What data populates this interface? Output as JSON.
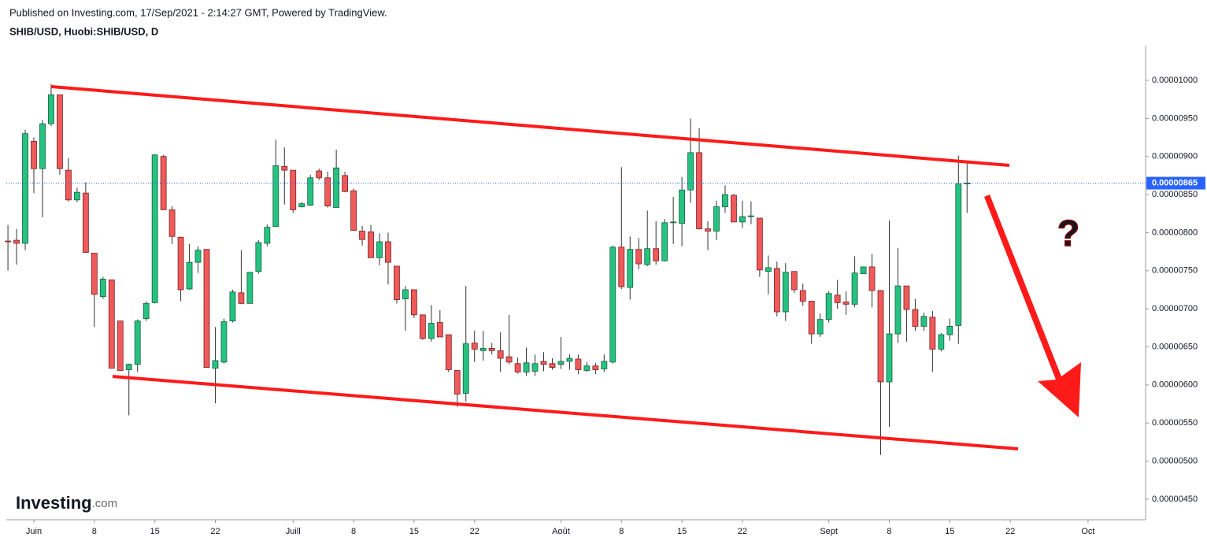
{
  "header": {
    "published": "Published on Investing.com, 17/Sep/2021 - 2:14:27 GMT, Powered by TradingView.",
    "symbol": "SHIB/USD, Huobi:SHIB/USD, D"
  },
  "logo": {
    "name": "Investing",
    "suffix": ".com"
  },
  "chart_data": {
    "type": "candlestick",
    "up_color": "#26c281",
    "down_color": "#ef5a5a",
    "annotation": "?",
    "price_line": {
      "value": 8.65e-06,
      "label": "0.00000865"
    },
    "xlim": [
      -3.19,
      128.66
    ],
    "xticks": [
      {
        "value": 0,
        "label": "Juin"
      },
      {
        "value": 7,
        "label": "8"
      },
      {
        "value": 14,
        "label": "15"
      },
      {
        "value": 21,
        "label": "22"
      },
      {
        "value": 30,
        "label": "Juill"
      },
      {
        "value": 37,
        "label": "8"
      },
      {
        "value": 44,
        "label": "15"
      },
      {
        "value": 51,
        "label": "22"
      },
      {
        "value": 61,
        "label": "Août"
      },
      {
        "value": 68,
        "label": "8"
      },
      {
        "value": 75,
        "label": "15"
      },
      {
        "value": 82,
        "label": "22"
      },
      {
        "value": 92,
        "label": "Sept"
      },
      {
        "value": 99,
        "label": "8"
      },
      {
        "value": 106,
        "label": "15"
      },
      {
        "value": 113,
        "label": "22"
      },
      {
        "value": 122,
        "label": "Oct"
      }
    ],
    "ylim": [
      4.23e-06,
      1.0455e-05
    ],
    "yticks": [
      {
        "value": 4.5e-06,
        "label": "0.00000450"
      },
      {
        "value": 5e-06,
        "label": "0.00000500"
      },
      {
        "value": 5.5e-06,
        "label": "0.00000550"
      },
      {
        "value": 6e-06,
        "label": "0.00000600"
      },
      {
        "value": 6.5e-06,
        "label": "0.00000650"
      },
      {
        "value": 7e-06,
        "label": "0.00000700"
      },
      {
        "value": 7.5e-06,
        "label": "0.00000750"
      },
      {
        "value": 8e-06,
        "label": "0.00000800"
      },
      {
        "value": 8.5e-06,
        "label": "0.00000850"
      },
      {
        "value": 9e-06,
        "label": "0.00000900"
      },
      {
        "value": 9.5e-06,
        "label": "0.00000950"
      },
      {
        "value": 1e-05,
        "label": "0.00001000"
      }
    ],
    "x": [
      -3,
      -2,
      -1,
      0,
      1,
      2,
      3,
      4,
      5,
      6,
      7,
      8,
      9,
      10,
      11,
      12,
      13,
      14,
      15,
      16,
      17,
      18,
      19,
      20,
      21,
      22,
      23,
      24,
      25,
      26,
      27,
      28,
      29,
      30,
      31,
      32,
      33,
      34,
      35,
      36,
      37,
      38,
      39,
      40,
      41,
      42,
      43,
      44,
      45,
      46,
      47,
      48,
      49,
      50,
      51,
      52,
      53,
      54,
      55,
      56,
      57,
      58,
      59,
      60,
      61,
      62,
      63,
      64,
      65,
      66,
      67,
      68,
      69,
      70,
      71,
      72,
      73,
      74,
      75,
      76,
      77,
      78,
      79,
      80,
      81,
      82,
      83,
      84,
      85,
      86,
      87,
      88,
      89,
      90,
      91,
      92,
      93,
      94,
      95,
      96,
      97,
      98,
      99,
      100,
      101,
      102,
      103,
      104,
      105,
      106,
      107,
      108
    ],
    "open": [
      7.89e-06,
      7.9e-06,
      7.86e-06,
      9.2e-06,
      8.84e-06,
      9.43e-06,
      9.81e-06,
      8.82e-06,
      8.43e-06,
      8.52e-06,
      7.73e-06,
      7.16e-06,
      7.38e-06,
      6.84e-06,
      6.2e-06,
      6.27e-06,
      6.87e-06,
      7.08e-06,
      9e-06,
      8.3e-06,
      7.94e-06,
      7.26e-06,
      7.61e-06,
      7.78e-06,
      6.22e-06,
      6.3e-06,
      6.84e-06,
      7.21e-06,
      7.07e-06,
      7.49e-06,
      7.86e-06,
      8.08e-06,
      8.87e-06,
      8.82e-06,
      8.34e-06,
      8.36e-06,
      8.81e-06,
      8.72e-06,
      8.33e-06,
      8.75e-06,
      8.55e-06,
      8.02e-06,
      8.01e-06,
      7.67e-06,
      7.88e-06,
      7.56e-06,
      7.13e-06,
      7.25e-06,
      6.92e-06,
      6.61e-06,
      6.82e-06,
      6.66e-06,
      6.19e-06,
      5.89e-06,
      6.55e-06,
      6.45e-06,
      6.48e-06,
      6.45e-06,
      6.37e-06,
      6.28e-06,
      6.17e-06,
      6.18e-06,
      6.31e-06,
      6.28e-06,
      6.27e-06,
      6.31e-06,
      6.34e-06,
      6.19e-06,
      6.25e-06,
      6.21e-06,
      6.3e-06,
      7.81e-06,
      7.28e-06,
      7.78e-06,
      7.58e-06,
      7.79e-06,
      7.63e-06,
      8.13e-06,
      8.12e-06,
      8.56e-06,
      9.05e-06,
      8.05e-06,
      8.02e-06,
      8.34e-06,
      8.49e-06,
      8.14e-06,
      8.21e-06,
      8.19e-06,
      7.49e-06,
      7.53e-06,
      6.96e-06,
      7.49e-06,
      7.24e-06,
      7.1e-06,
      6.67e-06,
      6.86e-06,
      7.18e-06,
      7.09e-06,
      7.06e-06,
      7.46e-06,
      7.55e-06,
      7.24e-06,
      6.04e-06,
      6.67e-06,
      7.3e-06,
      6.99e-06,
      6.77e-06,
      6.89e-06,
      6.47e-06,
      6.66e-06,
      6.78e-06,
      8.64e-06
    ],
    "high": [
      8.1e-06,
      8.05e-06,
      9.35e-06,
      9.25e-06,
      9.48e-06,
      9.95e-06,
      9.81e-06,
      8.98e-06,
      8.59e-06,
      8.66e-06,
      7.73e-06,
      7.42e-06,
      7.38e-06,
      6.84e-06,
      6.28e-06,
      6.86e-06,
      7.1e-06,
      9.03e-06,
      9.02e-06,
      8.35e-06,
      7.94e-06,
      7.85e-06,
      7.82e-06,
      7.78e-06,
      6.76e-06,
      6.87e-06,
      7.25e-06,
      7.77e-06,
      7.48e-06,
      7.9e-06,
      8.11e-06,
      9.22e-06,
      9.12e-06,
      8.82e-06,
      8.4e-06,
      8.76e-06,
      8.84e-06,
      8.8e-06,
      9.09e-06,
      8.8e-06,
      8.58e-06,
      8.09e-06,
      8.1e-06,
      7.99e-06,
      8e-06,
      7.56e-06,
      7.3e-06,
      7.25e-06,
      6.92e-06,
      7.05e-06,
      6.98e-06,
      6.66e-06,
      6.19e-06,
      7.3e-06,
      6.71e-06,
      6.71e-06,
      6.55e-06,
      6.69e-06,
      6.92e-06,
      6.36e-06,
      6.49e-06,
      6.4e-06,
      6.43e-06,
      6.35e-06,
      6.63e-06,
      6.4e-06,
      6.4e-06,
      6.3e-06,
      6.29e-06,
      6.4e-06,
      7.83e-06,
      8.86e-06,
      7.95e-06,
      7.93e-06,
      8.29e-06,
      8.15e-06,
      8.18e-06,
      8.47e-06,
      8.73e-06,
      9.5e-06,
      9.37e-06,
      8.15e-06,
      8.42e-06,
      8.62e-06,
      8.51e-06,
      8.42e-06,
      8.41e-06,
      8.19e-06,
      7.7e-06,
      7.62e-06,
      7.6e-06,
      7.49e-06,
      7.33e-06,
      7.1e-06,
      6.94e-06,
      7.23e-06,
      7.38e-06,
      7.23e-06,
      7.69e-06,
      7.55e-06,
      7.72e-06,
      7.24e-06,
      8.16e-06,
      7.8e-06,
      7.3e-06,
      7.13e-06,
      6.95e-06,
      6.97e-06,
      6.68e-06,
      6.87e-06,
      9.01e-06,
      8.91e-06
    ],
    "low": [
      7.5e-06,
      7.58e-06,
      7.77e-06,
      8.52e-06,
      8.2e-06,
      9.4e-06,
      8.76e-06,
      8.41e-06,
      8.4e-06,
      7.74e-06,
      6.76e-06,
      7.13e-06,
      6.22e-06,
      6.19e-06,
      5.6e-06,
      6.17e-06,
      6.84e-06,
      7.07e-06,
      8.3e-06,
      7.85e-06,
      7.1e-06,
      7.25e-06,
      7.47e-06,
      6.23e-06,
      5.76e-06,
      6.28e-06,
      6.82e-06,
      7.06e-06,
      7.07e-06,
      7.46e-06,
      7.82e-06,
      8.08e-06,
      8.37e-06,
      8.26e-06,
      8.33e-06,
      8.35e-06,
      8.69e-06,
      8.33e-06,
      8.33e-06,
      8.53e-06,
      8.03e-06,
      7.83e-06,
      7.67e-06,
      7.57e-06,
      7.32e-06,
      7.07e-06,
      6.71e-06,
      6.88e-06,
      6.59e-06,
      6.57e-06,
      6.63e-06,
      6.17e-06,
      5.71e-06,
      5.78e-06,
      6.3e-06,
      6.32e-06,
      6.4e-06,
      6.17e-06,
      6.27e-06,
      6.15e-06,
      6.12e-06,
      6.12e-06,
      6.18e-06,
      6.2e-06,
      6.21e-06,
      6.2e-06,
      6.14e-06,
      6.17e-06,
      6.14e-06,
      6.17e-06,
      6.28e-06,
      7.26e-06,
      7.12e-06,
      7.52e-06,
      7.56e-06,
      7.58e-06,
      7.62e-06,
      7.85e-06,
      7.82e-06,
      8.39e-06,
      8.04e-06,
      7.77e-06,
      7.9e-06,
      8.26e-06,
      8.14e-06,
      8.06e-06,
      8.11e-06,
      7.42e-06,
      7.19e-06,
      6.9e-06,
      6.84e-06,
      7.21e-06,
      7.04e-06,
      6.54e-06,
      6.63e-06,
      6.82e-06,
      7e-06,
      6.92e-06,
      7.02e-06,
      7.46e-06,
      7.02e-06,
      5.08e-06,
      5.45e-06,
      6.55e-06,
      6.57e-06,
      6.71e-06,
      6.71e-06,
      6.17e-06,
      6.44e-06,
      6.58e-06,
      6.54e-06,
      8.26e-06
    ],
    "close": [
      7.88e-06,
      7.86e-06,
      9.3e-06,
      8.84e-06,
      9.43e-06,
      9.81e-06,
      8.84e-06,
      8.43e-06,
      8.53e-06,
      7.74e-06,
      7.19e-06,
      7.39e-06,
      6.22e-06,
      6.19e-06,
      6.27e-06,
      6.84e-06,
      7.07e-06,
      9.02e-06,
      8.3e-06,
      7.95e-06,
      7.25e-06,
      7.61e-06,
      7.77e-06,
      6.23e-06,
      6.32e-06,
      6.83e-06,
      7.22e-06,
      7.07e-06,
      7.48e-06,
      7.87e-06,
      8.07e-06,
      8.88e-06,
      8.82e-06,
      8.3e-06,
      8.38e-06,
      8.72e-06,
      8.72e-06,
      8.35e-06,
      8.85e-06,
      8.54e-06,
      8.03e-06,
      7.91e-06,
      7.67e-06,
      7.88e-06,
      7.61e-06,
      7.12e-06,
      7.25e-06,
      6.92e-06,
      6.61e-06,
      6.81e-06,
      6.63e-06,
      6.2e-06,
      5.88e-06,
      6.54e-06,
      6.47e-06,
      6.48e-06,
      6.45e-06,
      6.35e-06,
      6.3e-06,
      6.17e-06,
      6.29e-06,
      6.28e-06,
      6.27e-06,
      6.23e-06,
      6.31e-06,
      6.35e-06,
      6.2e-06,
      6.25e-06,
      6.2e-06,
      6.31e-06,
      7.81e-06,
      7.29e-06,
      7.78e-06,
      7.59e-06,
      7.79e-06,
      7.63e-06,
      8.13e-06,
      8.14e-06,
      8.56e-06,
      9.05e-06,
      8.05e-06,
      8.02e-06,
      8.34e-06,
      8.5e-06,
      8.14e-06,
      8.21e-06,
      8.22e-06,
      7.51e-06,
      7.54e-06,
      6.96e-06,
      7.48e-06,
      7.25e-06,
      7.1e-06,
      6.67e-06,
      6.86e-06,
      7.2e-06,
      7.08e-06,
      7.06e-06,
      7.47e-06,
      7.55e-06,
      7.24e-06,
      6.04e-06,
      6.67e-06,
      7.3e-06,
      6.99e-06,
      6.77e-06,
      6.9e-06,
      6.47e-06,
      6.66e-06,
      6.77e-06,
      8.64e-06,
      8.65e-06
    ]
  }
}
